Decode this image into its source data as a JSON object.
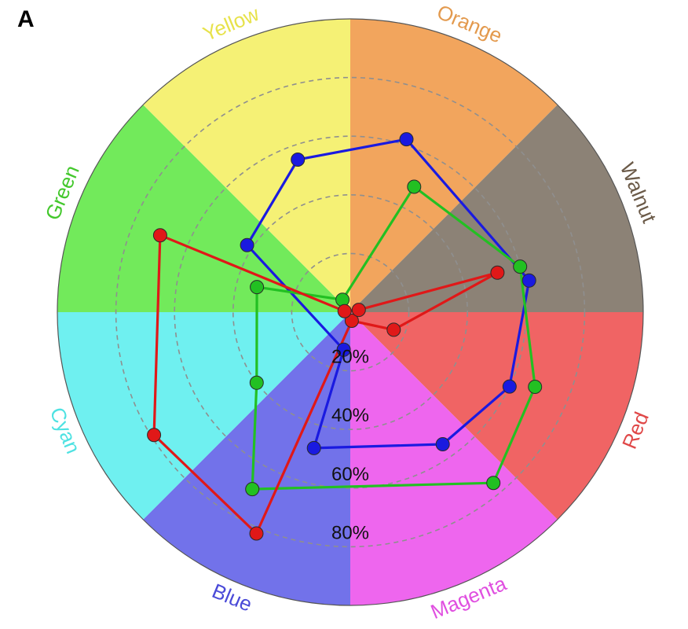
{
  "panel_label": "A",
  "chart_data": {
    "type": "radar",
    "categories": [
      "Orange",
      "Walnut",
      "Red",
      "Magenta",
      "Blue",
      "Cyan",
      "Green",
      "Yellow"
    ],
    "category_colors": {
      "Orange": "#f2a55d",
      "Walnut": "#8c8276",
      "Red": "#f06464",
      "Magenta": "#ee66ee",
      "Blue": "#7272ea",
      "Cyan": "#6ff0f0",
      "Green": "#72ea5b",
      "Yellow": "#f5f175"
    },
    "category_label_colors": {
      "Orange": "#e39a4e",
      "Walnut": "#6b5a48",
      "Red": "#e04848",
      "Magenta": "#e04fe0",
      "Blue": "#4a4ad8",
      "Cyan": "#4fe2e2",
      "Green": "#43c82c",
      "Yellow": "#e7e24a"
    },
    "radial_ticks": [
      "20%",
      "40%",
      "60%",
      "80%"
    ],
    "radial_tick_values": [
      20,
      40,
      60,
      80
    ],
    "rlim": [
      0,
      100
    ],
    "grid": true,
    "series": [
      {
        "color": "#1a1ae0",
        "values": [
          {
            "angle": 18,
            "r": 62
          },
          {
            "angle": 80,
            "r": 62
          },
          {
            "angle": 115,
            "r": 60
          },
          {
            "angle": 145,
            "r": 55
          },
          {
            "angle": 195,
            "r": 48
          },
          {
            "angle": 190,
            "r": 13
          },
          {
            "angle": 303,
            "r": 42
          },
          {
            "angle": 341,
            "r": 55
          }
        ]
      },
      {
        "color": "#22c022",
        "values": [
          {
            "angle": 27,
            "r": 48
          },
          {
            "angle": 75,
            "r": 60
          },
          {
            "angle": 112,
            "r": 68
          },
          {
            "angle": 140,
            "r": 76
          },
          {
            "angle": 209,
            "r": 69
          },
          {
            "angle": 233,
            "r": 40
          },
          {
            "angle": 285,
            "r": 33
          },
          {
            "angle": 328,
            "r": 5
          }
        ]
      },
      {
        "color": "#e01818",
        "values": [
          {
            "angle": 75,
            "r": 52
          },
          {
            "angle": 112,
            "r": 16
          },
          {
            "angle": 170,
            "r": 3
          },
          {
            "angle": 203,
            "r": 82
          },
          {
            "angle": 238,
            "r": 79
          },
          {
            "angle": 292,
            "r": 70
          },
          {
            "angle": 280,
            "r": 2
          },
          {
            "angle": 75,
            "r": 3
          }
        ]
      }
    ]
  }
}
